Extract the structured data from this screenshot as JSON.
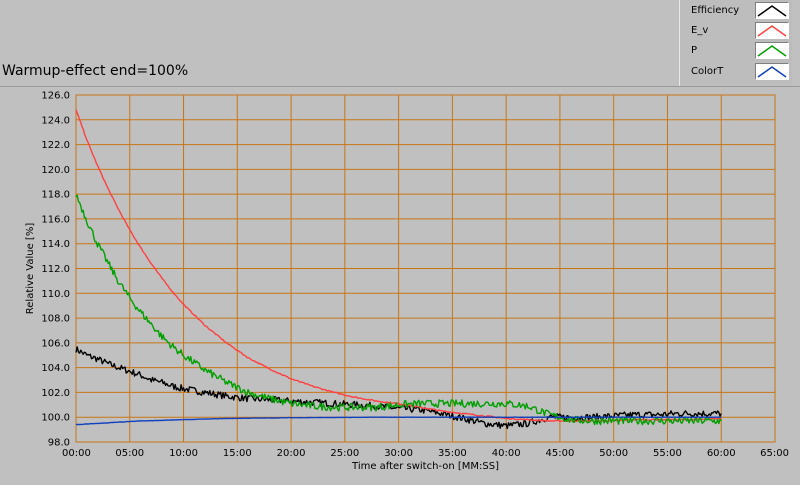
{
  "title": "Warmup-effect end=100%",
  "colors": {
    "plot_background": "#c0c0c0",
    "grid": "#c87514",
    "efficiency": "#000000",
    "e_v": "#ff4040",
    "p": "#00a000",
    "colort": "#1040c0"
  },
  "chart_data": {
    "type": "line",
    "title": "Warmup-effect end=100%",
    "xlabel": "Time after switch-on [MM:SS]",
    "ylabel": "Relative Value [%]",
    "xlim": [
      0,
      65
    ],
    "ylim": [
      98.0,
      126.0
    ],
    "grid": true,
    "legend_position": "top-right",
    "x_ticks": [
      "00:00",
      "05:00",
      "10:00",
      "15:00",
      "20:00",
      "25:00",
      "30:00",
      "35:00",
      "40:00",
      "45:00",
      "50:00",
      "55:00",
      "60:00",
      "65:00"
    ],
    "y_ticks": [
      "98.0",
      "100.0",
      "102.0",
      "104.0",
      "106.0",
      "108.0",
      "110.0",
      "112.0",
      "114.0",
      "116.0",
      "118.0",
      "120.0",
      "122.0",
      "124.0",
      "126.0"
    ],
    "x": [
      0,
      1,
      2,
      3,
      4,
      5,
      6,
      7,
      8,
      9,
      10,
      12,
      14,
      16,
      18,
      20,
      22,
      24,
      26,
      28,
      30,
      32,
      34,
      36,
      38,
      40,
      42,
      44,
      46,
      48,
      50,
      52,
      54,
      56,
      58,
      60
    ],
    "series": [
      {
        "name": "Efficiency",
        "color": "#000000",
        "values": [
          105.5,
          105.0,
          104.7,
          104.3,
          104.0,
          103.7,
          103.4,
          103.0,
          102.8,
          102.5,
          102.3,
          102.0,
          101.7,
          101.5,
          101.4,
          101.3,
          101.2,
          101.1,
          101.0,
          100.9,
          100.7,
          100.6,
          100.3,
          99.9,
          99.5,
          99.3,
          99.5,
          100.0,
          100.0,
          100.0,
          100.1,
          100.2,
          100.2,
          100.3,
          100.3,
          100.3
        ]
      },
      {
        "name": "E_v",
        "color": "#ff4040",
        "values": [
          124.8,
          122.4,
          120.3,
          118.4,
          116.7,
          115.1,
          113.7,
          112.4,
          111.2,
          110.1,
          109.1,
          107.4,
          106.0,
          104.8,
          103.9,
          103.1,
          102.5,
          102.0,
          101.6,
          101.3,
          101.1,
          100.8,
          100.5,
          100.3,
          100.1,
          99.9,
          99.8,
          99.7,
          99.7,
          99.7,
          99.7,
          99.8,
          99.8,
          99.8,
          99.8,
          99.9
        ]
      },
      {
        "name": "P",
        "color": "#00a000",
        "values": [
          118.0,
          115.9,
          114.0,
          112.4,
          110.9,
          109.6,
          108.5,
          107.5,
          106.5,
          105.7,
          105.0,
          103.8,
          102.8,
          102.0,
          101.5,
          101.1,
          100.9,
          100.8,
          100.8,
          100.8,
          101.0,
          101.1,
          101.1,
          101.1,
          101.1,
          101.1,
          100.9,
          100.2,
          99.8,
          99.7,
          99.7,
          99.7,
          99.7,
          99.7,
          99.7,
          99.7
        ]
      },
      {
        "name": "ColorT",
        "color": "#1040c0",
        "values": [
          99.4,
          99.45,
          99.5,
          99.55,
          99.6,
          99.65,
          99.7,
          99.72,
          99.75,
          99.78,
          99.8,
          99.85,
          99.9,
          99.92,
          99.94,
          99.96,
          99.97,
          99.98,
          99.99,
          100.0,
          100.0,
          100.0,
          100.0,
          100.0,
          100.0,
          100.0,
          100.0,
          100.0,
          100.0,
          100.0,
          100.0,
          100.0,
          100.0,
          100.0,
          100.0,
          100.0
        ]
      }
    ]
  }
}
